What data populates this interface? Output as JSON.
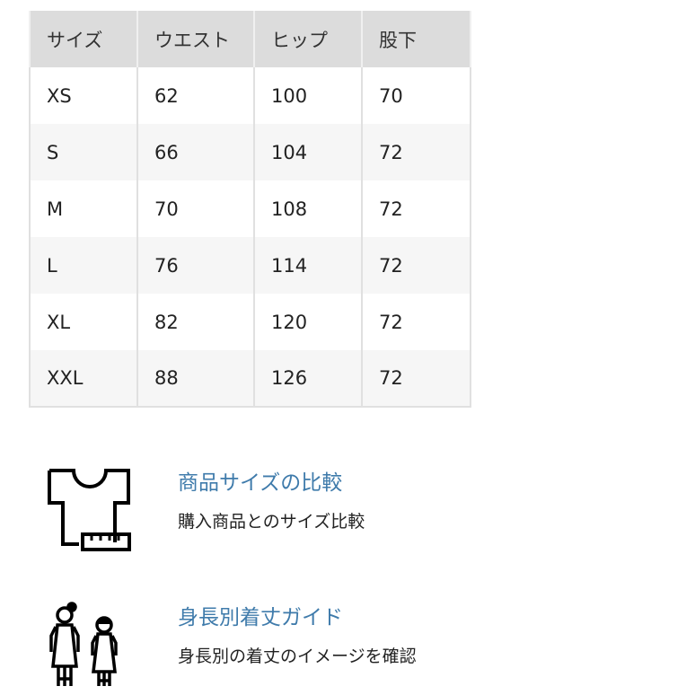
{
  "size_table": {
    "headers": [
      "サイズ",
      "ウエスト",
      "ヒップ",
      "股下"
    ],
    "rows": [
      [
        "XS",
        "62",
        "100",
        "70"
      ],
      [
        "S",
        "66",
        "104",
        "72"
      ],
      [
        "M",
        "70",
        "108",
        "72"
      ],
      [
        "L",
        "76",
        "114",
        "72"
      ],
      [
        "XL",
        "82",
        "120",
        "72"
      ],
      [
        "XXL",
        "88",
        "126",
        "72"
      ]
    ]
  },
  "features": [
    {
      "icon": "tshirt-ruler-icon",
      "title": "商品サイズの比較",
      "description": "購入商品とのサイズ比較"
    },
    {
      "icon": "people-height-icon",
      "title": "身長別着丈ガイド",
      "description": "身長別の着丈のイメージを確認"
    }
  ],
  "colors": {
    "link": "#3f7bab",
    "header_bg": "#dcdcdc",
    "stripe_bg": "#f6f6f6"
  }
}
